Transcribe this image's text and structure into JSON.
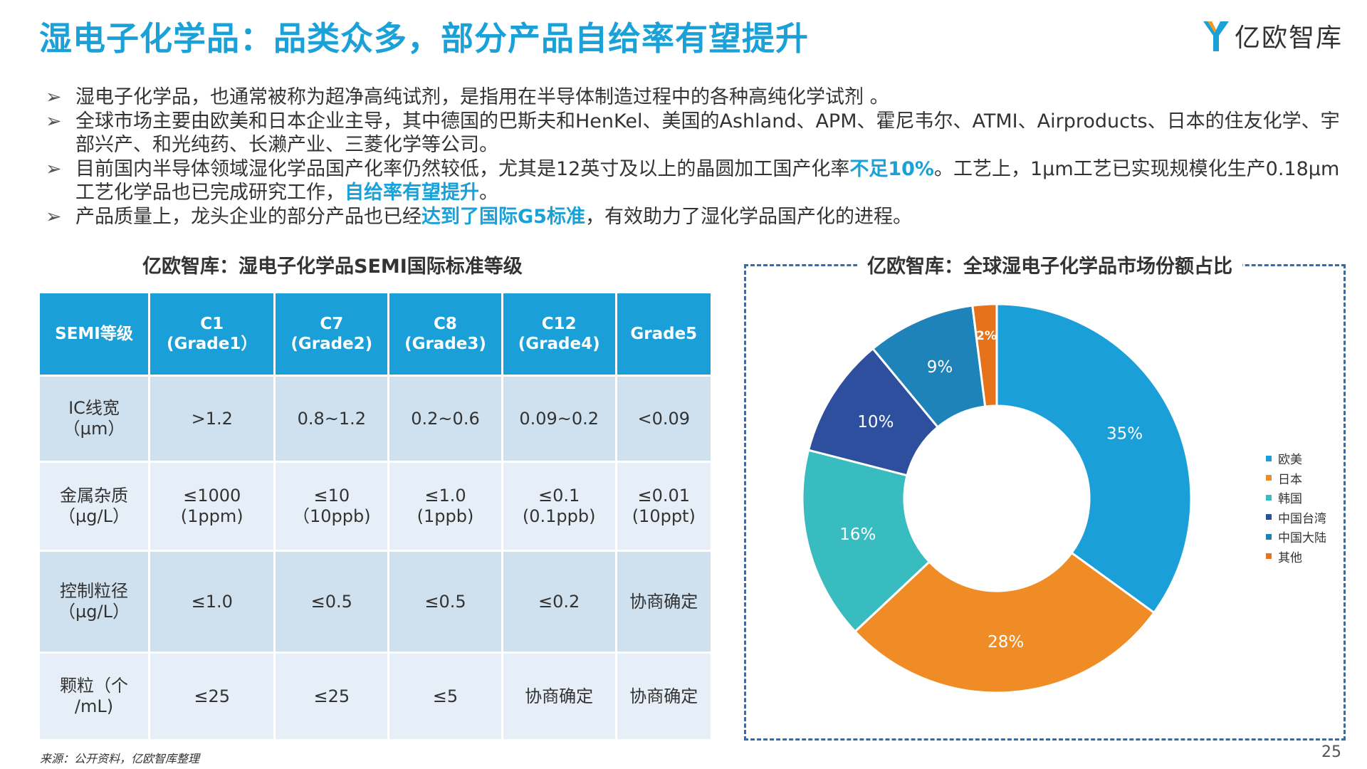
{
  "title": "湿电子化学品：品类众多，部分产品自给率有望提升",
  "logo": {
    "text": "亿欧智库",
    "icon": "yiou-logo-icon",
    "colors": [
      "#1aa1d8",
      "#f39c21"
    ]
  },
  "bullets": [
    {
      "parts": [
        {
          "text": "湿电子化学品，也通常被称为超净高纯试剂，是指用在半导体制造过程中的各种高纯化学试剂 。"
        }
      ]
    },
    {
      "parts": [
        {
          "text": "全球市场主要由欧美和日本企业主导，其中德国的巴斯夫和HenKel、美国的Ashland、APM、霍尼韦尔、ATMI、Airproducts、日本的住友化学、宇部兴产、和光纯药、长濑产业、三菱化学等公司。"
        }
      ]
    },
    {
      "parts": [
        {
          "text": "目前国内半导体领域湿化学品国产化率仍然较低，尤其是12英寸及以上的晶圆加工国产化率"
        },
        {
          "text": "不足10%",
          "hl": true
        },
        {
          "text": "。工艺上，1µm工艺已实现规模化生产0.18µm工艺化学品也已完成研究工作，"
        },
        {
          "text": "自给率有望提升",
          "hl": true
        },
        {
          "text": "。"
        }
      ]
    },
    {
      "parts": [
        {
          "text": "产品质量上，龙头企业的部分产品也已经"
        },
        {
          "text": "达到了国际G5标准",
          "hl": true
        },
        {
          "text": "，有效助力了湿化学品国产化的进程。"
        }
      ]
    }
  ],
  "table": {
    "title": "亿欧智库：湿电子化学品SEMI国际标准等级",
    "headers": [
      [
        "SEMI等级"
      ],
      [
        "C1",
        "(Grade1）"
      ],
      [
        "C7",
        "(Grade2)"
      ],
      [
        "C8",
        "(Grade3)"
      ],
      [
        "C12",
        "(Grade4)"
      ],
      [
        "Grade5"
      ]
    ],
    "rows": [
      [
        [
          "IC线宽",
          "（µm）"
        ],
        [
          ">1.2"
        ],
        [
          "0.8~1.2"
        ],
        [
          "0.2~0.6"
        ],
        [
          "0.09~0.2"
        ],
        [
          "<0.09"
        ]
      ],
      [
        [
          "金属杂质",
          "（µg/L）"
        ],
        [
          "≤1000",
          "(1ppm)"
        ],
        [
          "≤10",
          "（10ppb)"
        ],
        [
          "≤1.0",
          "(1ppb)"
        ],
        [
          "≤0.1",
          "(0.1ppb)"
        ],
        [
          "≤0.01",
          "(10ppt)"
        ]
      ],
      [
        [
          "控制粒径",
          "（µg/L）"
        ],
        [
          "≤1.0"
        ],
        [
          "≤0.5"
        ],
        [
          "≤0.5"
        ],
        [
          "≤0.2"
        ],
        [
          "协商确定"
        ]
      ],
      [
        [
          "颗粒（个",
          "/mL)"
        ],
        [
          "≤25"
        ],
        [
          "≤25"
        ],
        [
          "≤5"
        ],
        [
          "协商确定"
        ],
        [
          "协商确定"
        ]
      ]
    ]
  },
  "chart_data": {
    "type": "pie",
    "title": "亿欧智库：全球湿电子化学品市场份额占比",
    "series": [
      {
        "name": "欧美",
        "value": 35,
        "label": "35%",
        "color": "#1a9fd8"
      },
      {
        "name": "日本",
        "value": 28,
        "label": "28%",
        "color": "#ef8c26"
      },
      {
        "name": "韩国",
        "value": 16,
        "label": "16%",
        "color": "#38bcc0"
      },
      {
        "name": "中国台湾",
        "value": 10,
        "label": "10%",
        "color": "#2e4f9e"
      },
      {
        "name": "中国大陆",
        "value": 9,
        "label": "9%",
        "color": "#1e83b8"
      },
      {
        "name": "其他",
        "value": 2,
        "label": "2%",
        "color": "#e6731a"
      }
    ],
    "legend_position": "right",
    "donut": true
  },
  "source": "来源：公开资料，亿欧智库整理",
  "page_number": "25"
}
